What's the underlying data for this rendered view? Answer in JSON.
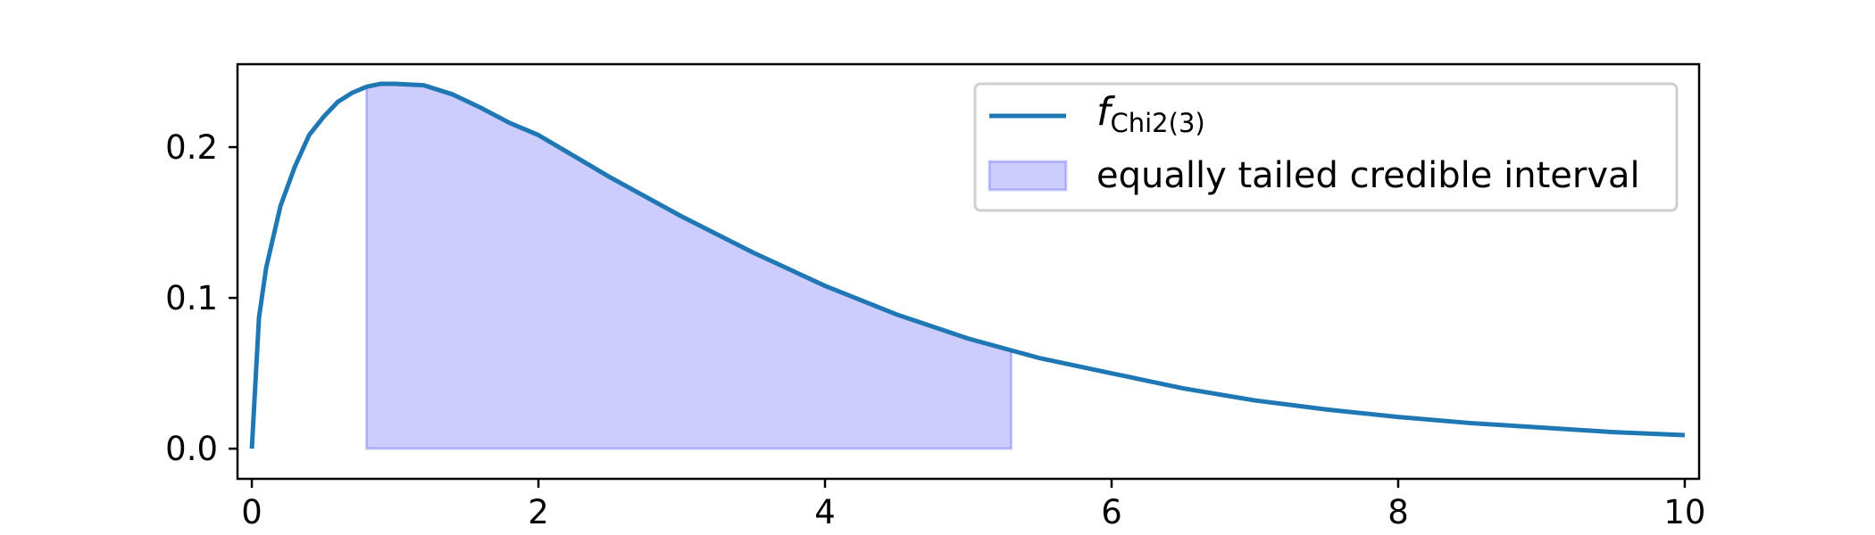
{
  "chart_data": {
    "type": "area",
    "title": "",
    "xlabel": "",
    "ylabel": "",
    "xlim": [
      -0.1,
      10.1
    ],
    "ylim": [
      -0.02,
      0.255
    ],
    "grid": false,
    "legend_placement": "top-right",
    "x_ticks": [
      0,
      2,
      4,
      6,
      8,
      10
    ],
    "x_tick_labels": [
      "0",
      "2",
      "4",
      "6",
      "8",
      "10"
    ],
    "y_ticks": [
      0.0,
      0.1,
      0.2
    ],
    "y_tick_labels": [
      "0.0",
      "0.1",
      "0.2"
    ],
    "series": [
      {
        "name_main": "f",
        "name_sub": "Chi2(3)",
        "kind": "line",
        "color": "#1f77b4",
        "x": [
          0,
          0.05,
          0.1,
          0.2,
          0.3,
          0.4,
          0.5,
          0.6,
          0.7,
          0.8,
          0.9,
          1.0,
          1.2,
          1.4,
          1.6,
          1.8,
          2.0,
          2.5,
          3.0,
          3.5,
          4.0,
          4.5,
          5.0,
          5.5,
          6.0,
          6.5,
          7.0,
          7.5,
          8.0,
          8.5,
          9.0,
          9.5,
          10.0
        ],
        "y": [
          0.0,
          0.087,
          0.12,
          0.161,
          0.187,
          0.208,
          0.22,
          0.23,
          0.236,
          0.24,
          0.242,
          0.242,
          0.241,
          0.235,
          0.226,
          0.216,
          0.208,
          0.18,
          0.154,
          0.13,
          0.108,
          0.089,
          0.073,
          0.06,
          0.05,
          0.04,
          0.032,
          0.026,
          0.021,
          0.017,
          0.014,
          0.011,
          0.009
        ]
      },
      {
        "name": "equally tailed credible interval",
        "kind": "interval",
        "color": "#0000ff",
        "opacity": 0.2,
        "x_start": 0.8,
        "x_end": 5.3
      }
    ]
  }
}
